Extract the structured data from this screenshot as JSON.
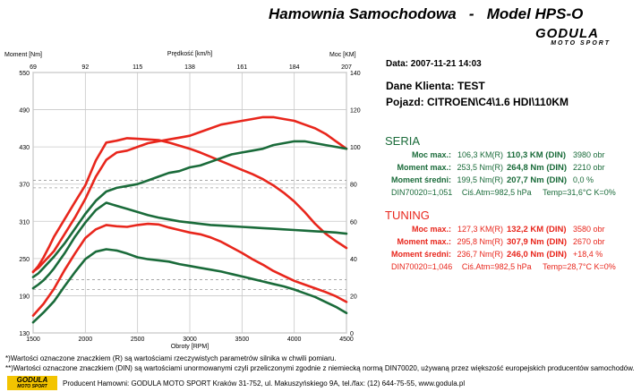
{
  "header": {
    "title": "Hamownia Samochodowa   -   Model HPS-O",
    "logo_brand": "GODULA",
    "logo_sub": "MOTO SPORT"
  },
  "info": {
    "date": "Data: 2007-11-21  14:03",
    "client": "Dane Klienta: TEST",
    "vehicle": "Pojazd: CITROEN\\C4\\1.6 HDI\\110KM"
  },
  "seria": {
    "heading": "SERIA",
    "rows": [
      [
        "Moc max.:",
        "106,3 KM(R)",
        "110,3 KM (DIN)",
        "3980 obr"
      ],
      [
        "Moment max.:",
        "253,5 Nm(R)",
        "264,8 Nm (DIN)",
        "2210 obr"
      ],
      [
        "Moment średni:",
        "199,5 Nm(R)",
        "207,7 Nm (DIN)",
        "0,0 %"
      ]
    ],
    "din_line": [
      "DIN70020=1,051",
      "Ciś.Atm=982,5 hPa",
      "Temp=31,6°C  K=0%"
    ],
    "color": "#1a6b3a"
  },
  "tuning": {
    "heading": "TUNING",
    "rows": [
      [
        "Moc max.:",
        "127,3 KM(R)",
        "132,2 KM (DIN)",
        "3580 obr"
      ],
      [
        "Moment max.:",
        "295,8 Nm(R)",
        "307,9 Nm (DIN)",
        "2670 obr"
      ],
      [
        "Moment średni:",
        "236,7 Nm(R)",
        "246,0 Nm (DIN)",
        "+18,4 %"
      ]
    ],
    "din_line": [
      "DIN70020=1,046",
      "Ciś.Atm=982,5 hPa",
      "Temp=28,7°C  K=0%"
    ],
    "color": "#e8261c"
  },
  "footnotes": {
    "line1": "*)Wartości oznaczone znaczkiem (R) są wartościami rzeczywistych parametrów silnika w chwili pomiaru.",
    "line2": "**)Wartości oznaczone znaczkiem (DIN) są wartościami unormowanymi czyli przeliczonymi zgodnie z niemiecką normą DIN70020, używaną przez większość europejskich producentów samochodów.",
    "producer": "Producent Hamowni: GODULA MOTO SPORT Kraków 31-752, ul. Makuszyńskiego 9A, tel./fax: (12) 644-75-55, www.godula.pl",
    "logo_brand": "GODULA",
    "logo_sub": "MOTO SPORT"
  },
  "chart_data": {
    "type": "line",
    "xlabel": "Obroty [RPM]",
    "ylabel_left": "Moment [Nm]",
    "ylabel_right": "Moc [KM]",
    "top_axis_label": "Prędkość [km/h]",
    "xlim": [
      1500,
      4500
    ],
    "x_ticks": [
      "1500",
      "2000",
      "2500",
      "3000",
      "3500",
      "4000",
      "4500"
    ],
    "top_ticks": [
      "69",
      "92",
      "115",
      "138",
      "161",
      "184",
      "207"
    ],
    "ylim_left": [
      130,
      550
    ],
    "left_ticks": [
      "130",
      "190",
      "250",
      "310",
      "370",
      "430",
      "490",
      "550"
    ],
    "ylim_right": [
      0,
      140
    ],
    "right_ticks": [
      "0",
      "20",
      "40",
      "60",
      "80",
      "100",
      "120",
      "140"
    ],
    "grid": true,
    "dashed_refs": {
      "torque_nm": [
        216,
        200
      ],
      "power_km": [
        82,
        78
      ]
    },
    "series": [
      {
        "axis": "left",
        "color": "#e8261c",
        "x": [
          1500,
          1550,
          1600,
          1650,
          1700,
          1800,
          1900,
          2000,
          2100,
          2200,
          2300,
          2400,
          2500,
          2600,
          2700,
          2800,
          2900,
          3000,
          3100,
          3200,
          3300,
          3400,
          3500,
          3600,
          3700,
          3800,
          3900,
          4000,
          4100,
          4200,
          4300,
          4400,
          4500
        ],
        "y": [
          228,
          238,
          252,
          268,
          285,
          313,
          341,
          368,
          408,
          437,
          440,
          444,
          443,
          442,
          441,
          437,
          432,
          427,
          421,
          414,
          407,
          400,
          393,
          386,
          378,
          368,
          356,
          342,
          325,
          306,
          290,
          278,
          267
        ]
      },
      {
        "axis": "left",
        "color": "#1a6b3a",
        "x": [
          1500,
          1550,
          1600,
          1650,
          1700,
          1800,
          1900,
          2000,
          2100,
          2200,
          2300,
          2400,
          2500,
          2600,
          2700,
          2800,
          2900,
          3000,
          3100,
          3200,
          3300,
          3400,
          3500,
          3600,
          3700,
          3800,
          3900,
          4000,
          4100,
          4200,
          4300,
          4400,
          4500
        ],
        "y": [
          202,
          208,
          215,
          224,
          234,
          258,
          285,
          308,
          328,
          340,
          335,
          330,
          325,
          320,
          316,
          313,
          310,
          308,
          306,
          304,
          303,
          302,
          301,
          300,
          299,
          298,
          297,
          296,
          295,
          294,
          293,
          292,
          290
        ]
      },
      {
        "axis": "right",
        "color": "#e8261c",
        "x": [
          1500,
          1550,
          1600,
          1650,
          1700,
          1800,
          1900,
          2000,
          2100,
          2200,
          2300,
          2400,
          2500,
          2600,
          2700,
          2800,
          2900,
          3000,
          3100,
          3200,
          3300,
          3400,
          3500,
          3600,
          3700,
          3800,
          3900,
          4000,
          4100,
          4200,
          4300,
          4400,
          4500
        ],
        "y": [
          33,
          35,
          38,
          41,
          44,
          53,
          62,
          72,
          84,
          93,
          97,
          98,
          100,
          102,
          103,
          104,
          105,
          106,
          108,
          110,
          112,
          113,
          114,
          115,
          116,
          116,
          115,
          114,
          112,
          110,
          107,
          103,
          99
        ]
      },
      {
        "axis": "right",
        "color": "#1a6b3a",
        "x": [
          1500,
          1550,
          1600,
          1650,
          1700,
          1800,
          1900,
          2000,
          2100,
          2200,
          2300,
          2400,
          2500,
          2600,
          2700,
          2800,
          2900,
          3000,
          3100,
          3200,
          3300,
          3400,
          3500,
          3600,
          3700,
          3800,
          3900,
          4000,
          4100,
          4200,
          4300,
          4400,
          4500
        ],
        "y": [
          30,
          32,
          35,
          38,
          41,
          48,
          56,
          64,
          71,
          76,
          78,
          79,
          80,
          82,
          84,
          86,
          87,
          89,
          90,
          92,
          94,
          96,
          97,
          98,
          99,
          101,
          102,
          103,
          103,
          102,
          101,
          100,
          99
        ]
      },
      {
        "axis": "left",
        "color": "#e8261c",
        "x": [
          1500,
          1600,
          1700,
          1800,
          1900,
          2000,
          2100,
          2200,
          2300,
          2400,
          2500,
          2600,
          2700,
          2800,
          2900,
          3000,
          3100,
          3200,
          3300,
          3400,
          3500,
          3600,
          3700,
          3800,
          3900,
          4000,
          4100,
          4200,
          4300,
          4400,
          4500
        ],
        "y": [
          158,
          177,
          201,
          231,
          258,
          283,
          297,
          304,
          302,
          301,
          304,
          306,
          305,
          300,
          296,
          292,
          289,
          284,
          277,
          268,
          259,
          249,
          240,
          230,
          222,
          214,
          208,
          202,
          196,
          189,
          180
        ]
      },
      {
        "axis": "left",
        "color": "#1a6b3a",
        "x": [
          1500,
          1600,
          1700,
          1800,
          1900,
          2000,
          2100,
          2200,
          2300,
          2400,
          2500,
          2600,
          2700,
          2800,
          2900,
          3000,
          3100,
          3200,
          3300,
          3400,
          3500,
          3600,
          3700,
          3800,
          3900,
          4000,
          4100,
          4200,
          4300,
          4400,
          4500
        ],
        "y": [
          147,
          163,
          181,
          205,
          228,
          249,
          261,
          265,
          263,
          258,
          252,
          249,
          247,
          245,
          241,
          238,
          235,
          232,
          229,
          225,
          221,
          217,
          213,
          209,
          205,
          200,
          194,
          188,
          180,
          172,
          162
        ]
      }
    ]
  }
}
